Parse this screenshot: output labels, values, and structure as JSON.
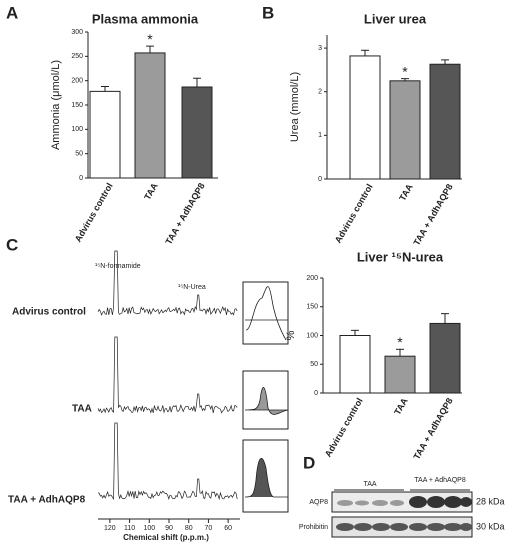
{
  "panels": [
    "A",
    "B",
    "C",
    "D"
  ],
  "chart_data": [
    {
      "type": "bar",
      "title": "Plasma ammonia",
      "ylabel": "Ammonia (μmol/L)",
      "categories": [
        "Advirus control",
        "TAA",
        "TAA + AdhAQP8"
      ],
      "values": [
        178,
        257,
        187
      ],
      "errors": [
        10,
        14,
        18
      ],
      "colors": [
        "#ffffff",
        "#9b9b9b",
        "#565656"
      ],
      "ylim": [
        0,
        300
      ],
      "yticks": [
        0,
        50,
        100,
        150,
        200,
        250,
        300
      ],
      "annotation": {
        "text": "*",
        "category": "TAA"
      }
    },
    {
      "type": "bar",
      "title": "Liver urea",
      "ylabel": "Urea (mmol/L)",
      "categories": [
        "Advirus control",
        "TAA",
        "TAA + AdhAQP8"
      ],
      "values": [
        2.82,
        2.25,
        2.63
      ],
      "errors": [
        0.13,
        0.05,
        0.1
      ],
      "colors": [
        "#ffffff",
        "#9b9b9b",
        "#565656"
      ],
      "ylim": [
        0,
        3.3
      ],
      "yticks": [
        0,
        1,
        2,
        3
      ],
      "annotation": {
        "text": "*",
        "category": "TAA"
      }
    },
    {
      "type": "bar",
      "title": "Liver ¹⁵N-urea",
      "ylabel": "%",
      "categories": [
        "Advirus control",
        "TAA",
        "TAA + AdhAQP8"
      ],
      "values": [
        100,
        64,
        121
      ],
      "errors": [
        9,
        12,
        17
      ],
      "colors": [
        "#ffffff",
        "#9b9b9b",
        "#565656"
      ],
      "ylim": [
        0,
        200
      ],
      "yticks": [
        0,
        50,
        100,
        150,
        200
      ],
      "annotation": {
        "text": "*",
        "category": "TAA"
      }
    }
  ],
  "spectra": {
    "peaks": [
      "¹⁵N-formamide",
      "¹⁵N-Urea"
    ],
    "rows": [
      "Advirus control",
      "TAA",
      "TAA + AdhAQP8"
    ],
    "xlabel": "Chemical shift (p.p.m.)",
    "xlim": [
      125,
      55
    ],
    "xticks": [
      120,
      110,
      100,
      90,
      80,
      70,
      60
    ]
  },
  "blot": {
    "groups": [
      "TAA",
      "TAA + AdhAQP8"
    ],
    "rows": [
      "AQP8",
      "Prohibitin"
    ],
    "sizes": [
      "28 kDa",
      "30 kDa"
    ]
  }
}
